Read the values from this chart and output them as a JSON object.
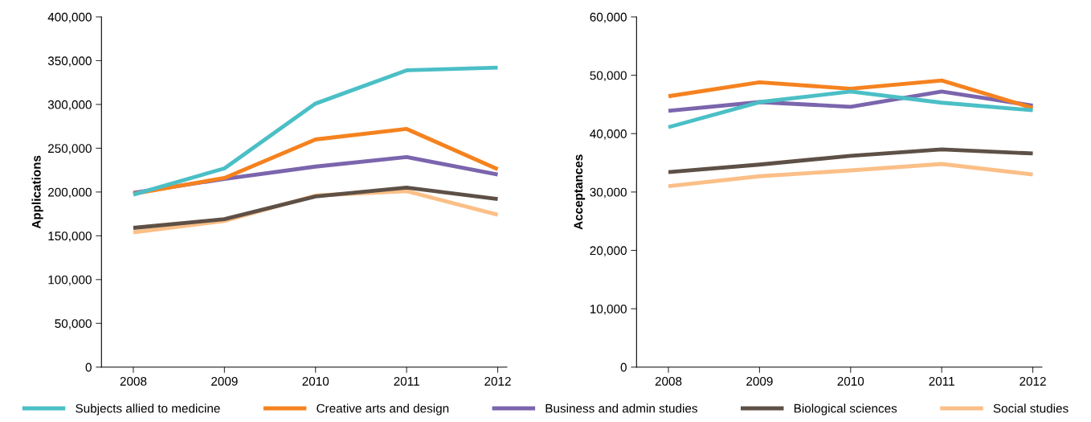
{
  "chart_data": [
    {
      "type": "line",
      "ylabel": "Applications",
      "categories": [
        "2008",
        "2009",
        "2010",
        "2011",
        "2012"
      ],
      "ylim": [
        0,
        400000
      ],
      "yticks": [
        {
          "value": 0,
          "label": "0"
        },
        {
          "value": 50000,
          "label": "50,000"
        },
        {
          "value": 100000,
          "label": "100,000"
        },
        {
          "value": 150000,
          "label": "150,000"
        },
        {
          "value": 200000,
          "label": "200,000"
        },
        {
          "value": 250000,
          "label": "250,000"
        },
        {
          "value": 300000,
          "label": "300,000"
        },
        {
          "value": 350000,
          "label": "350,000"
        },
        {
          "value": 400000,
          "label": "400,000"
        }
      ],
      "grid": false,
      "legend": "bottom",
      "marker": "none",
      "line_style": "solid",
      "series": [
        {
          "name": "Subjects allied to medicine",
          "color": "#4bbfc6",
          "values": [
            197000,
            227000,
            301000,
            339000,
            342000
          ]
        },
        {
          "name": "Creative arts and design",
          "color": "#f5821f",
          "values": [
            198000,
            216000,
            260000,
            272000,
            226000
          ]
        },
        {
          "name": "Business and admin studies",
          "color": "#7b65ad",
          "values": [
            199000,
            215000,
            229000,
            240000,
            220000
          ]
        },
        {
          "name": "Biological sciences",
          "color": "#5e5046",
          "values": [
            159000,
            169000,
            195000,
            205000,
            192000
          ]
        },
        {
          "name": "Social studies",
          "color": "#fbbf87",
          "values": [
            154000,
            167000,
            196000,
            201000,
            174000
          ]
        }
      ]
    },
    {
      "type": "line",
      "ylabel": "Acceptances",
      "categories": [
        "2008",
        "2009",
        "2010",
        "2011",
        "2012"
      ],
      "ylim": [
        0,
        60000
      ],
      "yticks": [
        {
          "value": 0,
          "label": "0"
        },
        {
          "value": 10000,
          "label": "10,000"
        },
        {
          "value": 20000,
          "label": "20,000"
        },
        {
          "value": 30000,
          "label": "30,000"
        },
        {
          "value": 40000,
          "label": "40,000"
        },
        {
          "value": 50000,
          "label": "50,000"
        },
        {
          "value": 60000,
          "label": "60,000"
        }
      ],
      "grid": false,
      "marker": "none",
      "line_style": "solid",
      "series": [
        {
          "color": "#4bbfc6",
          "values": [
            41100,
            45400,
            47200,
            45300,
            44000
          ]
        },
        {
          "color": "#f5821f",
          "values": [
            46400,
            48800,
            47700,
            49100,
            44400
          ]
        },
        {
          "color": "#7b65ad",
          "values": [
            43900,
            45400,
            44600,
            47200,
            44800
          ]
        },
        {
          "color": "#5e5046",
          "values": [
            33400,
            34700,
            36200,
            37300,
            36600
          ]
        },
        {
          "color": "#fbbf87",
          "values": [
            31000,
            32700,
            33700,
            34800,
            33000
          ]
        }
      ]
    }
  ]
}
